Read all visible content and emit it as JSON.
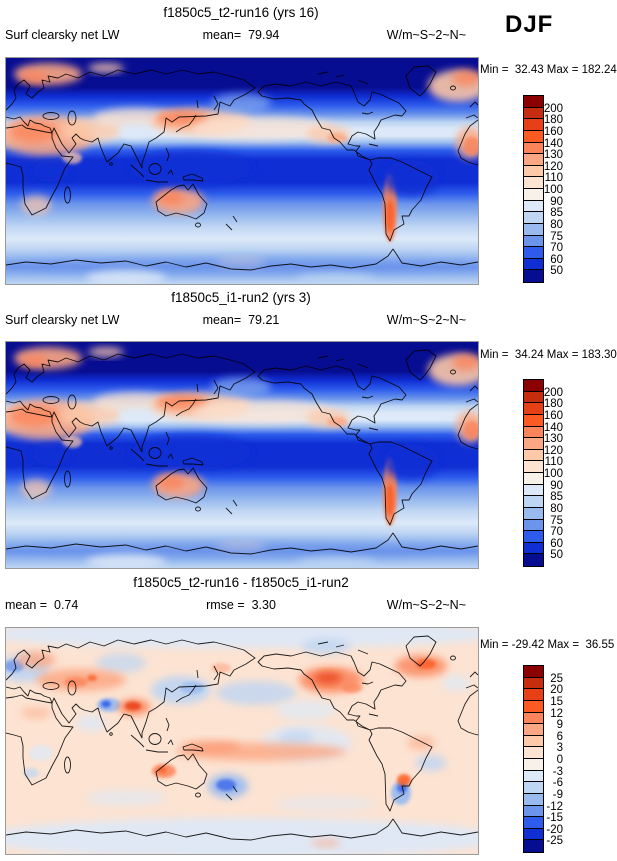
{
  "season_label": "DJF",
  "palette": {
    "colors": [
      "#8B0000",
      "#C62D0E",
      "#E73F16",
      "#FB5B22",
      "#FB845A",
      "#FCA783",
      "#FDC9A9",
      "#FCE3D2",
      "#F8F1EA",
      "#DDE9F8",
      "#BED5F3",
      "#98BAEF",
      "#6B94EB",
      "#2D5CEC",
      "#0F2ED4",
      "#070D91"
    ],
    "map_border": "#9a9a9a",
    "coast_color": "#000000"
  },
  "panels": [
    {
      "title": "f1850c5_t2-run16 (yrs 16)",
      "left_label": "Surf clearsky net LW",
      "center_label": "mean=  79.94",
      "units_label": "W/m~S~2~N~",
      "minmax_label": "Min =  32.43 Max = 182.24"
    },
    {
      "title": "f1850c5_i1-run2 (yrs 3)",
      "left_label": "Surf clearsky net LW",
      "center_label": "mean=  79.21",
      "units_label": "W/m~S~2~N~",
      "minmax_label": "Min =  34.24 Max = 183.30"
    },
    {
      "title": "f1850c5_t2-run16 - f1850c5_i1-run2",
      "left_label": "mean =  0.74",
      "center_label": "rmse =  3.30",
      "units_label": "W/m~S~2~N~",
      "minmax_label": "Min = -29.42 Max =  36.55"
    }
  ],
  "chart_data": [
    {
      "type": "heatmap",
      "subtype": "filled-contour global map, equirectangular, Pacific-centered (0-360E)",
      "title": "f1850c5_t2-run16 (yrs 16)",
      "variable": "Surf clearsky net LW",
      "season": "DJF",
      "units": "W/m~S~2~N~",
      "mean": 79.94,
      "min": 32.43,
      "max": 182.24,
      "colorbar_levels": [
        200,
        180,
        160,
        140,
        130,
        120,
        110,
        100,
        90,
        85,
        80,
        75,
        70,
        60,
        50
      ],
      "colorbar_orientation": "vertical-right",
      "legend_position": "right"
    },
    {
      "type": "heatmap",
      "subtype": "filled-contour global map, equirectangular, Pacific-centered (0-360E)",
      "title": "f1850c5_i1-run2 (yrs 3)",
      "variable": "Surf clearsky net LW",
      "season": "DJF",
      "units": "W/m~S~2~N~",
      "mean": 79.21,
      "min": 34.24,
      "max": 183.3,
      "colorbar_levels": [
        200,
        180,
        160,
        140,
        130,
        120,
        110,
        100,
        90,
        85,
        80,
        75,
        70,
        60,
        50
      ],
      "colorbar_orientation": "vertical-right",
      "legend_position": "right"
    },
    {
      "type": "heatmap",
      "subtype": "difference map (model minus model), equirectangular, Pacific-centered (0-360E)",
      "title": "f1850c5_t2-run16 - f1850c5_i1-run2",
      "variable": "Surf clearsky net LW difference",
      "season": "DJF",
      "units": "W/m~S~2~N~",
      "mean": 0.74,
      "rmse": 3.3,
      "min": -29.42,
      "max": 36.55,
      "colorbar_levels": [
        25,
        20,
        15,
        12,
        9,
        6,
        3,
        0,
        -3,
        -6,
        -9,
        -12,
        -15,
        -20,
        -25
      ],
      "colorbar_orientation": "vertical-right",
      "legend_position": "right"
    }
  ]
}
